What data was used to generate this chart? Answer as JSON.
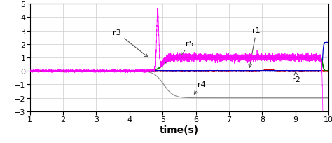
{
  "xlim": [
    1,
    10
  ],
  "ylim": [
    -3,
    5
  ],
  "xlabel": "time(s)",
  "xlabel_fontsize": 10,
  "tick_fontsize": 8,
  "grid_color": "#cccccc",
  "bg_color": "#ffffff",
  "fault_time": 4.85,
  "fault2_time": 9.82,
  "colors": {
    "r1": "#0000cc",
    "r2": "#cc0000",
    "r3": "#ff00ff",
    "r4": "#888888",
    "r5": "#007700"
  },
  "ann_color": "#555555",
  "ann_fontsize": 8
}
